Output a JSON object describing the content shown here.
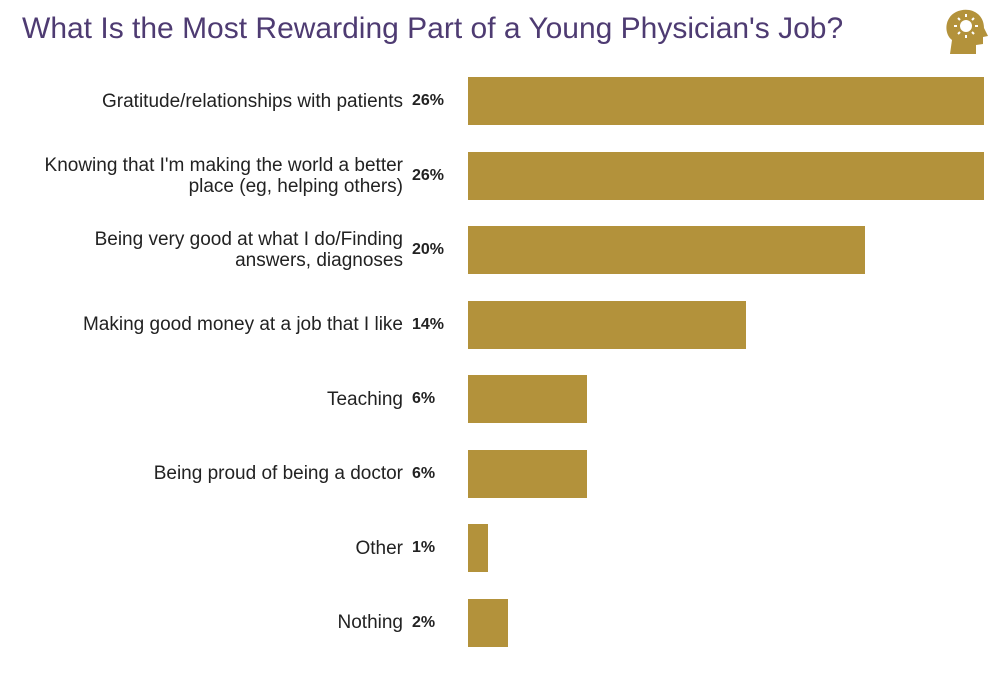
{
  "chart_data": {
    "type": "bar",
    "orientation": "horizontal",
    "title": "What Is the Most Rewarding Part of a Young Physician's Job?",
    "categories": [
      "Gratitude/relationships with patients",
      "Knowing that I'm making the world a better place (eg, helping others)",
      "Being very good at what I do/Finding answers, diagnoses",
      "Making good money at a job that I like",
      "Teaching",
      "Being proud of being a doctor",
      "Other",
      "Nothing"
    ],
    "values": [
      26,
      26,
      20,
      14,
      6,
      6,
      1,
      2
    ],
    "value_labels": [
      "26%",
      "26%",
      "20%",
      "14%",
      "6%",
      "6%",
      "1%",
      "2%"
    ],
    "color": "#b3923b"
  }
}
